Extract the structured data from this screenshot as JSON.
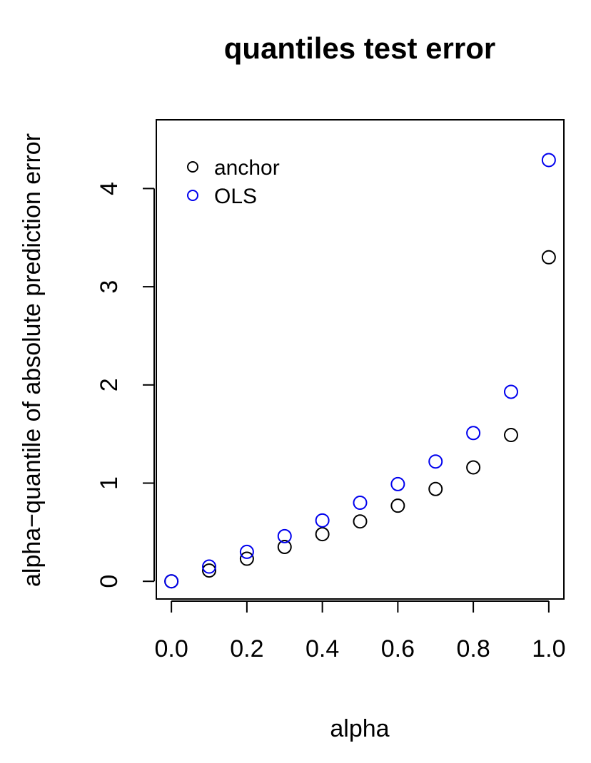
{
  "chart_data": {
    "type": "scatter",
    "title": "quantiles test error",
    "xlabel": "alpha",
    "ylabel": "alpha−quantile of absolute prediction error",
    "xlim": [
      -0.04,
      1.04
    ],
    "ylim": [
      -0.18,
      4.7
    ],
    "x_ticks": [
      0.0,
      0.2,
      0.4,
      0.6,
      0.8,
      1.0
    ],
    "x_tick_labels": [
      "0.0",
      "0.2",
      "0.4",
      "0.6",
      "0.8",
      "1.0"
    ],
    "y_ticks": [
      0,
      1,
      2,
      3,
      4
    ],
    "y_tick_labels": [
      "0",
      "1",
      "2",
      "3",
      "4"
    ],
    "grid": false,
    "legend_position": "top-left",
    "marker": "open-circle",
    "x": [
      0.0,
      0.1,
      0.2,
      0.3,
      0.4,
      0.5,
      0.6,
      0.7,
      0.8,
      0.9,
      1.0
    ],
    "series": [
      {
        "name": "anchor",
        "color": "#000000",
        "values": [
          0.0,
          0.11,
          0.23,
          0.35,
          0.48,
          0.61,
          0.77,
          0.94,
          1.16,
          1.49,
          3.3
        ]
      },
      {
        "name": "OLS",
        "color": "#0000ee",
        "values": [
          0.0,
          0.15,
          0.3,
          0.46,
          0.62,
          0.8,
          0.99,
          1.22,
          1.51,
          1.93,
          4.29
        ]
      }
    ]
  }
}
